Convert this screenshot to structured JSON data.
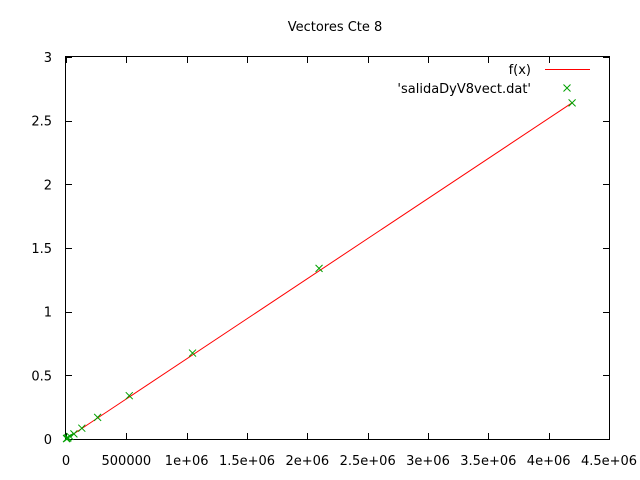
{
  "chart_data": {
    "type": "scatter",
    "title": "Vectores Cte 8",
    "xlabel": "",
    "ylabel": "",
    "xlim": [
      0,
      4500000
    ],
    "ylim": [
      0,
      3
    ],
    "x_ticks": [
      {
        "value": 0,
        "label": "0"
      },
      {
        "value": 500000,
        "label": "500000"
      },
      {
        "value": 1000000,
        "label": "1e+06"
      },
      {
        "value": 1500000,
        "label": "1.5e+06"
      },
      {
        "value": 2000000,
        "label": "2e+06"
      },
      {
        "value": 2500000,
        "label": "2.5e+06"
      },
      {
        "value": 3000000,
        "label": "3e+06"
      },
      {
        "value": 3500000,
        "label": "3.5e+06"
      },
      {
        "value": 4000000,
        "label": "4e+06"
      },
      {
        "value": 4500000,
        "label": "4.5e+06"
      }
    ],
    "y_ticks": [
      {
        "value": 0,
        "label": "0"
      },
      {
        "value": 0.5,
        "label": "0.5"
      },
      {
        "value": 1,
        "label": "1"
      },
      {
        "value": 1.5,
        "label": "1.5"
      },
      {
        "value": 2,
        "label": "2"
      },
      {
        "value": 2.5,
        "label": "2.5"
      },
      {
        "value": 3,
        "label": "3"
      }
    ],
    "grid": false,
    "legend_position": "top-right",
    "series": [
      {
        "name": "f(x)",
        "kind": "line",
        "color": "#ff0000",
        "x": [
          0,
          4194304
        ],
        "y": [
          0,
          2.64
        ]
      },
      {
        "name": "'salidaDyV8vect.dat'",
        "kind": "points",
        "marker": "x",
        "color": "#00a000",
        "x": [
          4096,
          8192,
          16384,
          32768,
          65536,
          131072,
          262144,
          524288,
          1048576,
          2097152,
          4194304
        ],
        "y": [
          0.003,
          0.005,
          0.01,
          0.02,
          0.04,
          0.085,
          0.17,
          0.34,
          0.675,
          1.34,
          2.64
        ]
      }
    ]
  }
}
